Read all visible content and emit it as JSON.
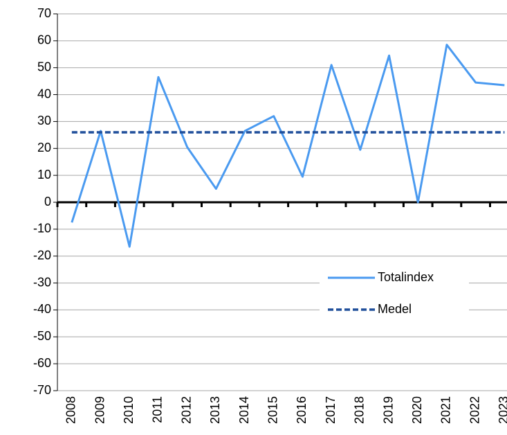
{
  "chart_data": {
    "type": "line",
    "categories": [
      "2008",
      "2009",
      "2010",
      "2011",
      "2012",
      "2013",
      "2014",
      "2015",
      "2016",
      "2017",
      "2018",
      "2019",
      "2020",
      "2021",
      "2022",
      "2023"
    ],
    "series": [
      {
        "name": "Totalindex",
        "color": "#4a9af0",
        "style": "solid",
        "values": [
          -7.5,
          26.5,
          -16.5,
          46.5,
          20.5,
          5,
          26.5,
          32,
          9.5,
          51,
          19.5,
          54.5,
          0,
          58.5,
          44.5,
          43.5
        ]
      },
      {
        "name": "Medel",
        "color": "#1f4e9a",
        "style": "dashed",
        "values": [
          26,
          26,
          26,
          26,
          26,
          26,
          26,
          26,
          26,
          26,
          26,
          26,
          26,
          26,
          26,
          26
        ]
      }
    ],
    "ylim": [
      -70,
      70
    ],
    "yticks": [
      -70,
      -60,
      -50,
      -40,
      -30,
      -20,
      -10,
      0,
      10,
      20,
      30,
      40,
      50,
      60,
      70
    ],
    "grid": true,
    "legend": "lower right"
  }
}
